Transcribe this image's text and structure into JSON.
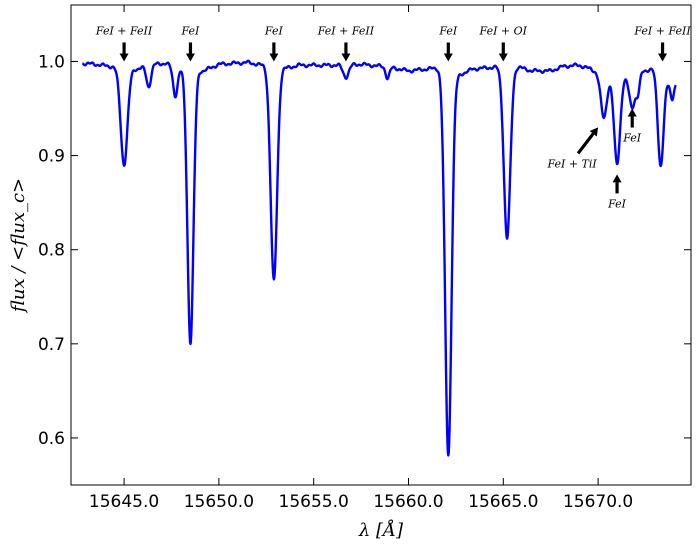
{
  "chart_data": {
    "type": "line",
    "xlabel": "λ [Å]",
    "ylabel": "flux / <flux_c>",
    "xlim": [
      15642.2,
      15674.9
    ],
    "ylim": [
      0.55,
      1.06
    ],
    "xticks": [
      15645.0,
      15650.0,
      15655.0,
      15660.0,
      15665.0,
      15670.0
    ],
    "xtick_labels": [
      "15645.0",
      "15650.0",
      "15655.0",
      "15660.0",
      "15665.0",
      "15670.0"
    ],
    "yticks": [
      0.6,
      0.7,
      0.8,
      0.9,
      1.0
    ],
    "ytick_labels": [
      "0.6",
      "0.7",
      "0.8",
      "0.9",
      "1.0"
    ],
    "grid": false,
    "series": [
      {
        "color": "#0000ff",
        "continuum": [
          [
            15642.8,
            0.998
          ],
          [
            15643.5,
            0.997
          ],
          [
            15644.2,
            0.995
          ],
          [
            15645.7,
            0.992
          ],
          [
            15646.6,
            0.997
          ],
          [
            15647.2,
            0.998
          ],
          [
            15647.8,
            0.993
          ],
          [
            15649.2,
            0.99
          ],
          [
            15650.0,
            0.997
          ],
          [
            15651.5,
            0.999
          ],
          [
            15652.3,
            0.996
          ],
          [
            15653.6,
            0.993
          ],
          [
            15654.2,
            0.996
          ],
          [
            15656.0,
            0.996
          ],
          [
            15657.5,
            0.997
          ],
          [
            15659.0,
            0.994
          ],
          [
            15660.0,
            0.99
          ],
          [
            15661.0,
            0.992
          ],
          [
            15661.6,
            0.993
          ],
          [
            15662.6,
            0.985
          ],
          [
            15663.4,
            0.992
          ],
          [
            15664.6,
            0.994
          ],
          [
            15665.8,
            0.994
          ],
          [
            15666.5,
            0.99
          ],
          [
            15667.5,
            0.99
          ],
          [
            15668.2,
            0.995
          ],
          [
            15669.0,
            0.996
          ],
          [
            15669.6,
            0.992
          ],
          [
            15670.3,
            0.985
          ],
          [
            15670.6,
            0.985
          ],
          [
            15671.6,
            0.983
          ],
          [
            15672.4,
            0.99
          ],
          [
            15672.9,
            0.992
          ],
          [
            15673.4,
            0.985
          ],
          [
            15673.8,
            0.975
          ],
          [
            15674.1,
            0.975
          ]
        ],
        "lines": [
          {
            "center": 15645.0,
            "depth": 0.103,
            "width": 0.18
          },
          {
            "center": 15646.3,
            "depth": 0.022,
            "width": 0.12
          },
          {
            "center": 15647.7,
            "depth": 0.03,
            "width": 0.12
          },
          {
            "center": 15648.5,
            "depth": 0.29,
            "width": 0.16
          },
          {
            "center": 15652.9,
            "depth": 0.228,
            "width": 0.17
          },
          {
            "center": 15656.7,
            "depth": 0.013,
            "width": 0.15
          },
          {
            "center": 15658.9,
            "depth": 0.012,
            "width": 0.1
          },
          {
            "center": 15662.1,
            "depth": 0.407,
            "width": 0.17
          },
          {
            "center": 15665.2,
            "depth": 0.182,
            "width": 0.17
          },
          {
            "center": 15670.3,
            "depth": 0.045,
            "width": 0.16
          },
          {
            "center": 15671.0,
            "depth": 0.093,
            "width": 0.16
          },
          {
            "center": 15671.8,
            "depth": 0.033,
            "width": 0.15
          },
          {
            "center": 15672.1,
            "depth": 0.02,
            "width": 0.1
          },
          {
            "center": 15673.3,
            "depth": 0.097,
            "width": 0.15
          },
          {
            "center": 15673.9,
            "depth": 0.015,
            "width": 0.08
          }
        ]
      }
    ],
    "annotations": [
      {
        "label": "FeI+FeII",
        "label_text": "FeI + FeII",
        "x": 15645.0,
        "y_tip": 1.0,
        "direction": "down"
      },
      {
        "label": "FeI",
        "label_text": "FeI",
        "x": 15648.5,
        "y_tip": 1.0,
        "direction": "down"
      },
      {
        "label": "FeI",
        "label_text": "FeI",
        "x": 15652.9,
        "y_tip": 1.0,
        "direction": "down"
      },
      {
        "label": "FeI+FeII",
        "label_text": "FeI + FeII",
        "x": 15656.7,
        "y_tip": 1.0,
        "direction": "down"
      },
      {
        "label": "FeI",
        "label_text": "FeI",
        "x": 15662.1,
        "y_tip": 1.0,
        "direction": "down"
      },
      {
        "label": "FeI+OI",
        "label_text": "FeI + OI",
        "x": 15665.0,
        "y_tip": 1.0,
        "direction": "down"
      },
      {
        "label": "FeI+FeII",
        "label_text": "FeI + FeII",
        "x": 15673.4,
        "y_tip": 1.0,
        "direction": "down"
      },
      {
        "label": "FeI+TiI",
        "label_text": "FeI + TiI",
        "x": 15670.0,
        "y_tip": 0.93,
        "direction": "up-right"
      },
      {
        "label": "FeI",
        "label_text": "FeI",
        "x": 15671.0,
        "y_tip": 0.88,
        "direction": "up"
      },
      {
        "label": "FeI",
        "label_text": "FeI",
        "x": 15671.8,
        "y_tip": 0.95,
        "direction": "up"
      }
    ]
  }
}
